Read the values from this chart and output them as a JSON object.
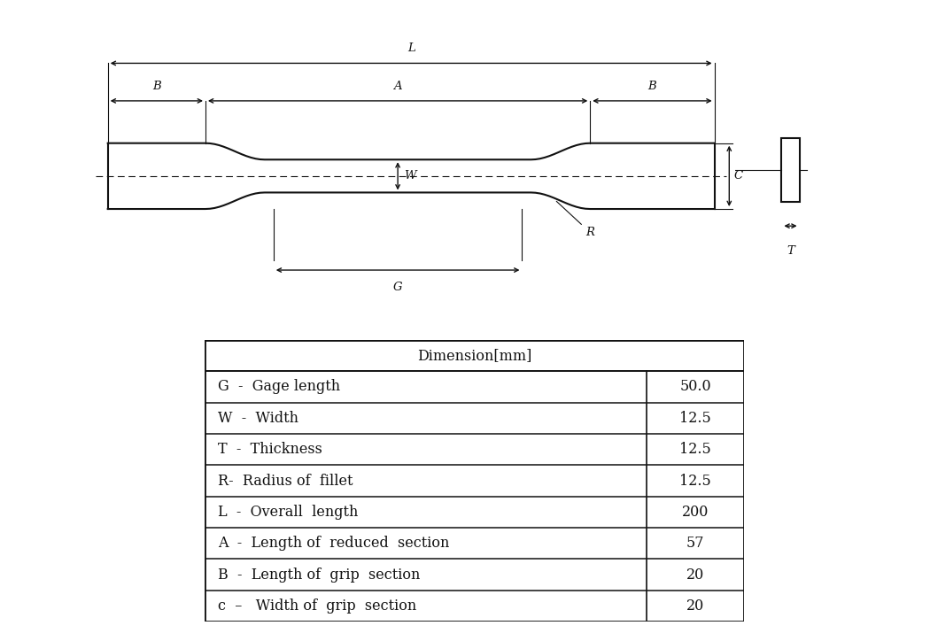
{
  "bg_color": "#ffffff",
  "table_title": "Dimension[mm]",
  "table_rows": [
    [
      "G  -  Gage length",
      "50.0"
    ],
    [
      "W  -  Width",
      "12.5"
    ],
    [
      "T  -  Thickness",
      "12.5"
    ],
    [
      "R-  Radius of  fillet",
      "12.5"
    ],
    [
      "L  -  Overall  length",
      "200"
    ],
    [
      "A  -  Length of  reduced  section",
      "57"
    ],
    [
      "B  -  Length of  grip  section",
      "20"
    ],
    [
      "c  –   Width of  grip  section",
      "20"
    ]
  ],
  "line_color": "#000000",
  "table_fontsize": 11.5,
  "draw_color": "#111111",
  "fig_width": 10.5,
  "fig_height": 7.24,
  "fig_dpi": 100
}
